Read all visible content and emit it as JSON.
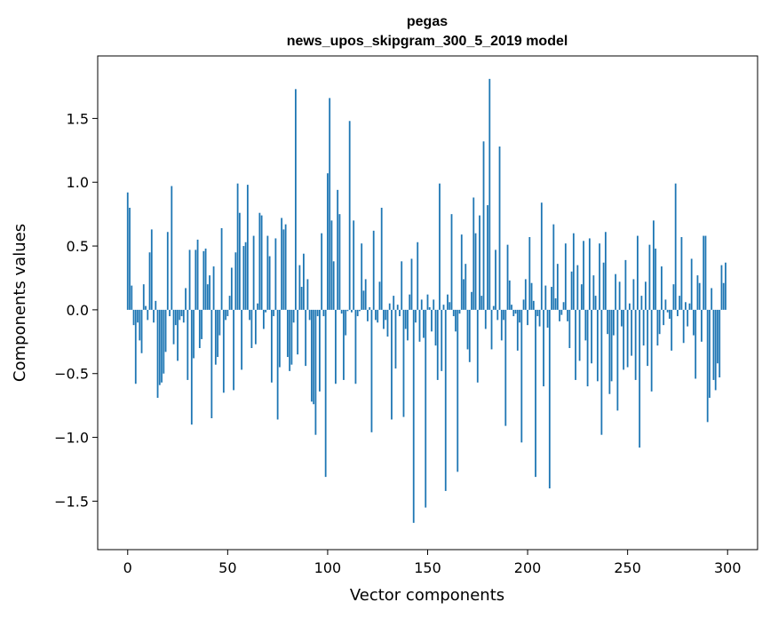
{
  "chart_data": {
    "type": "bar",
    "title": "pegas",
    "subtitle": "news_upos_skipgram_300_5_2019 model",
    "xlabel": "Vector components",
    "ylabel": "Components values",
    "xlim": [
      -15,
      315
    ],
    "ylim": [
      -1.88,
      1.99
    ],
    "xticks": [
      0,
      50,
      100,
      150,
      200,
      250,
      300
    ],
    "yticks": [
      -1.5,
      -1.0,
      -0.5,
      0.0,
      0.5,
      1.0,
      1.5
    ],
    "ytick_labels": [
      "−1.5",
      "−1.0",
      "−0.5",
      "0.0",
      "0.5",
      "1.0",
      "1.5"
    ],
    "bar_color": "#1f77b4",
    "grid": false,
    "values": [
      0.92,
      0.8,
      0.19,
      -0.12,
      -0.58,
      -0.1,
      -0.24,
      -0.34,
      0.2,
      0.03,
      -0.08,
      0.45,
      0.63,
      -0.1,
      0.07,
      -0.69,
      -0.59,
      -0.57,
      -0.5,
      -0.33,
      0.61,
      -0.05,
      0.97,
      -0.27,
      -0.12,
      -0.4,
      -0.08,
      -0.05,
      -0.1,
      0.17,
      -0.55,
      0.47,
      -0.9,
      -0.38,
      0.47,
      0.55,
      -0.3,
      -0.23,
      0.46,
      0.48,
      0.2,
      0.27,
      -0.85,
      0.34,
      -0.43,
      -0.37,
      -0.2,
      0.64,
      -0.65,
      -0.08,
      -0.05,
      0.11,
      0.33,
      -0.63,
      0.45,
      0.99,
      0.76,
      -0.47,
      0.5,
      0.53,
      0.98,
      -0.08,
      -0.3,
      0.58,
      -0.27,
      0.05,
      0.76,
      0.74,
      -0.15,
      -0.02,
      0.58,
      0.42,
      -0.57,
      -0.05,
      0.56,
      -0.86,
      -0.45,
      0.72,
      0.63,
      0.67,
      -0.37,
      -0.48,
      -0.43,
      -0.1,
      1.73,
      -0.35,
      0.35,
      0.18,
      0.44,
      -0.44,
      0.24,
      -0.08,
      -0.72,
      -0.74,
      -0.98,
      -0.05,
      -0.64,
      0.6,
      -0.05,
      -1.31,
      1.07,
      1.66,
      0.7,
      0.38,
      -0.58,
      0.94,
      0.75,
      -0.03,
      -0.55,
      -0.2,
      -0.01,
      1.48,
      -0.02,
      0.7,
      -0.58,
      -0.05,
      -0.01,
      0.52,
      0.15,
      0.24,
      -0.09,
      0.02,
      -0.96,
      0.62,
      -0.08,
      -0.1,
      0.22,
      0.8,
      -0.15,
      -0.08,
      -0.21,
      0.05,
      -0.86,
      0.11,
      -0.46,
      0.04,
      -0.05,
      0.38,
      -0.84,
      -0.15,
      -0.24,
      0.12,
      0.4,
      -1.67,
      -0.1,
      0.53,
      -0.25,
      0.08,
      -0.22,
      -1.55,
      0.12,
      0.02,
      -0.17,
      0.08,
      -0.28,
      -0.55,
      0.99,
      -0.48,
      0.04,
      -1.42,
      0.12,
      0.06,
      0.75,
      -0.05,
      -0.17,
      -1.27,
      -0.03,
      0.59,
      0.24,
      0.36,
      -0.31,
      -0.41,
      0.14,
      0.88,
      0.6,
      -0.57,
      0.74,
      0.11,
      1.32,
      -0.15,
      0.82,
      1.81,
      -0.31,
      0.03,
      0.47,
      -0.08,
      1.28,
      -0.24,
      -0.08,
      -0.91,
      0.51,
      0.23,
      0.04,
      -0.05,
      -0.03,
      -0.32,
      -0.1,
      -1.04,
      0.08,
      0.24,
      -0.12,
      0.57,
      0.21,
      0.07,
      -1.31,
      -0.05,
      -0.13,
      0.84,
      -0.6,
      0.19,
      -0.14,
      -1.4,
      0.18,
      0.67,
      0.09,
      0.36,
      -0.09,
      -0.04,
      0.06,
      0.52,
      -0.09,
      -0.3,
      0.3,
      0.6,
      -0.55,
      0.35,
      -0.4,
      0.2,
      0.54,
      -0.24,
      -0.6,
      0.56,
      -0.42,
      0.27,
      0.11,
      -0.56,
      0.52,
      -0.98,
      0.37,
      0.61,
      -0.19,
      -0.66,
      -0.56,
      -0.2,
      0.28,
      -0.79,
      0.22,
      -0.13,
      -0.47,
      0.39,
      -0.45,
      0.05,
      -0.36,
      0.24,
      -0.55,
      0.58,
      -1.08,
      0.11,
      -0.28,
      0.22,
      -0.44,
      0.51,
      -0.64,
      0.7,
      0.48,
      -0.28,
      -0.19,
      0.34,
      -0.12,
      0.08,
      -0.02,
      -0.07,
      -0.32,
      0.2,
      0.99,
      -0.05,
      0.11,
      0.57,
      -0.26,
      0.06,
      -0.13,
      0.05,
      0.4,
      -0.2,
      -0.54,
      0.27,
      0.21,
      -0.25,
      0.58,
      0.58,
      -0.88,
      -0.69,
      0.17,
      -0.55,
      -0.63,
      -0.42,
      -0.53,
      0.35,
      0.21,
      0.37
    ]
  }
}
